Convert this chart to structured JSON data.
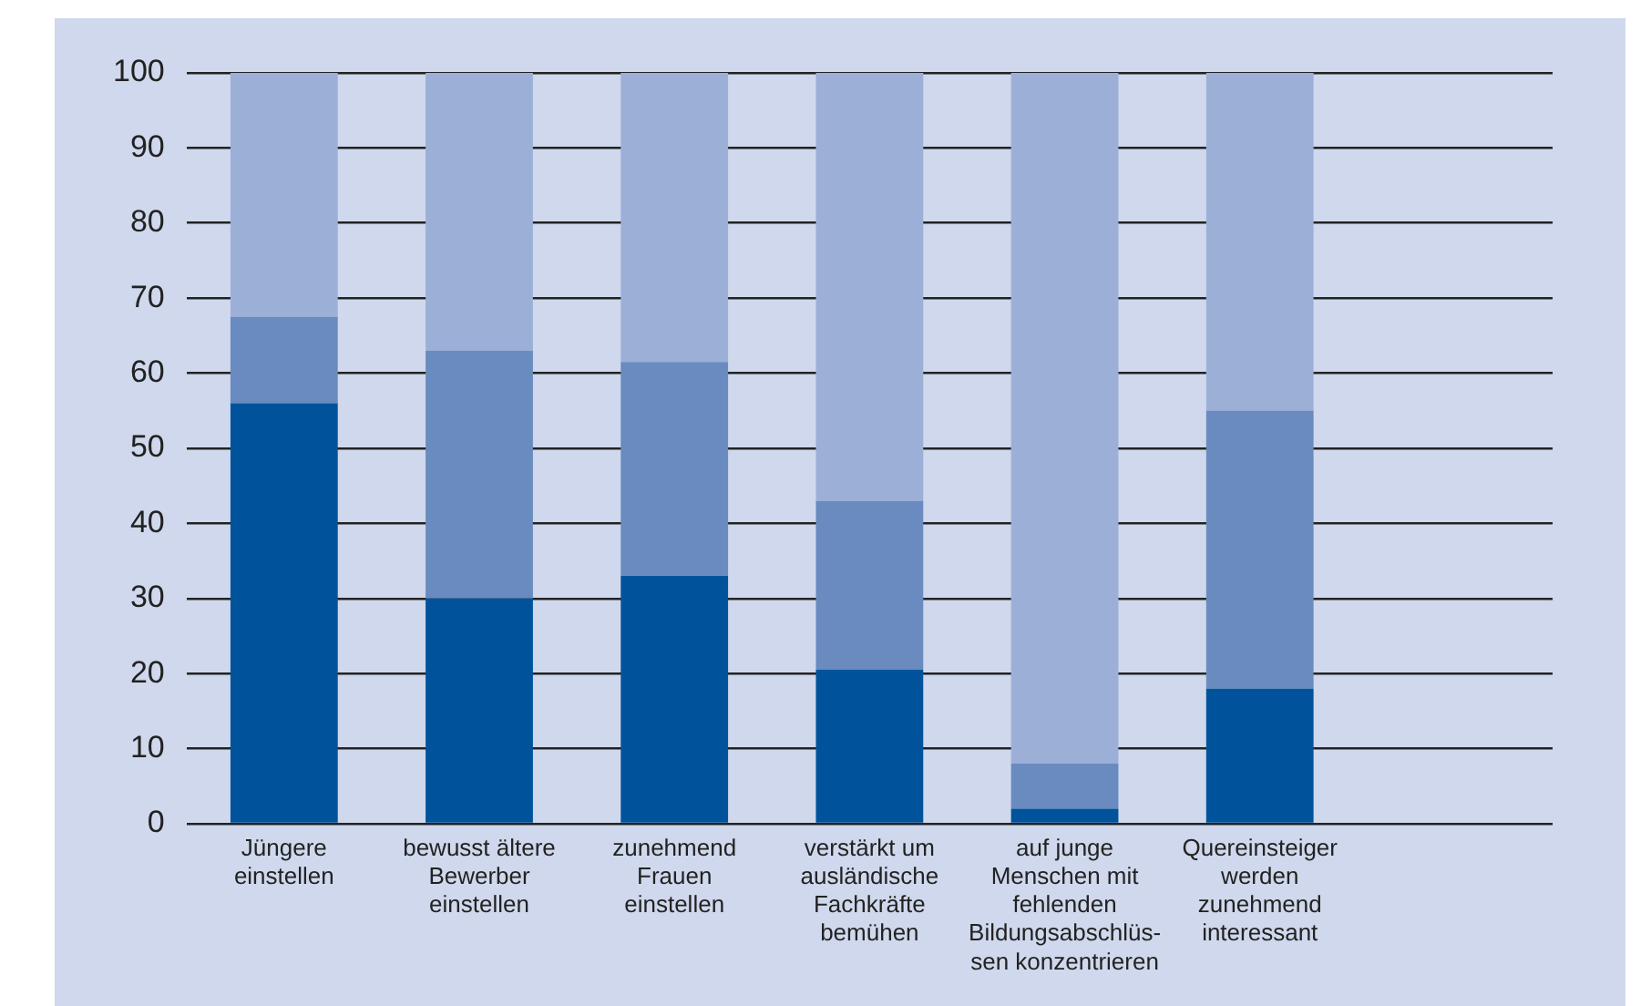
{
  "chart_data": {
    "type": "bar",
    "stacked": true,
    "categories": [
      "Jüngere\neinstellen",
      "bewusst ältere\nBewerber\neinstellen",
      "zunehmend\nFrauen\neinstellen",
      "verstärkt um\nausländische\nFachkräfte\nbemühen",
      "auf junge\nMenschen mit\nfehlenden\nBildungsabschlüs-\nsen konzentrieren",
      "Quereinsteiger\nwerden\nzunehmend\ninteressant",
      null
    ],
    "series": [
      {
        "color": "#00539b",
        "values": [
          56,
          30,
          33,
          20.5,
          2,
          18,
          null
        ]
      },
      {
        "color": "#6a8bbf",
        "values": [
          11.5,
          33,
          28.5,
          22.5,
          6,
          37,
          null
        ]
      },
      {
        "color": "#9cb0d7",
        "values": [
          32.5,
          37,
          38.5,
          57,
          92,
          45,
          null
        ]
      }
    ],
    "ylim": [
      0,
      100
    ],
    "yticks": [
      0,
      10,
      20,
      30,
      40,
      50,
      60,
      70,
      80,
      90,
      100
    ],
    "grid": "y",
    "legend": false
  }
}
